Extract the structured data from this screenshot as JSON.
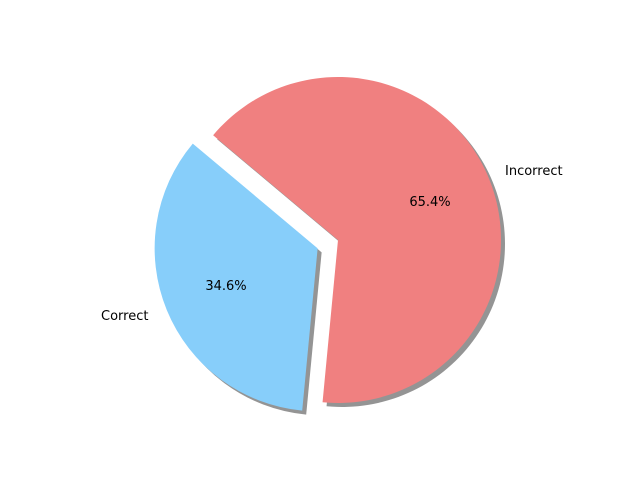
{
  "chart_data": {
    "type": "pie",
    "title": "",
    "slices": [
      {
        "label": "Correct",
        "value": 34.6,
        "pct_label": "34.6%",
        "color": "#87CEFA",
        "exploded": true
      },
      {
        "label": "Incorrect",
        "value": 65.4,
        "pct_label": "65.4%",
        "color": "#F08080",
        "exploded": false
      }
    ],
    "start_angle_deg": 140,
    "shadow": true,
    "legend": "none"
  }
}
